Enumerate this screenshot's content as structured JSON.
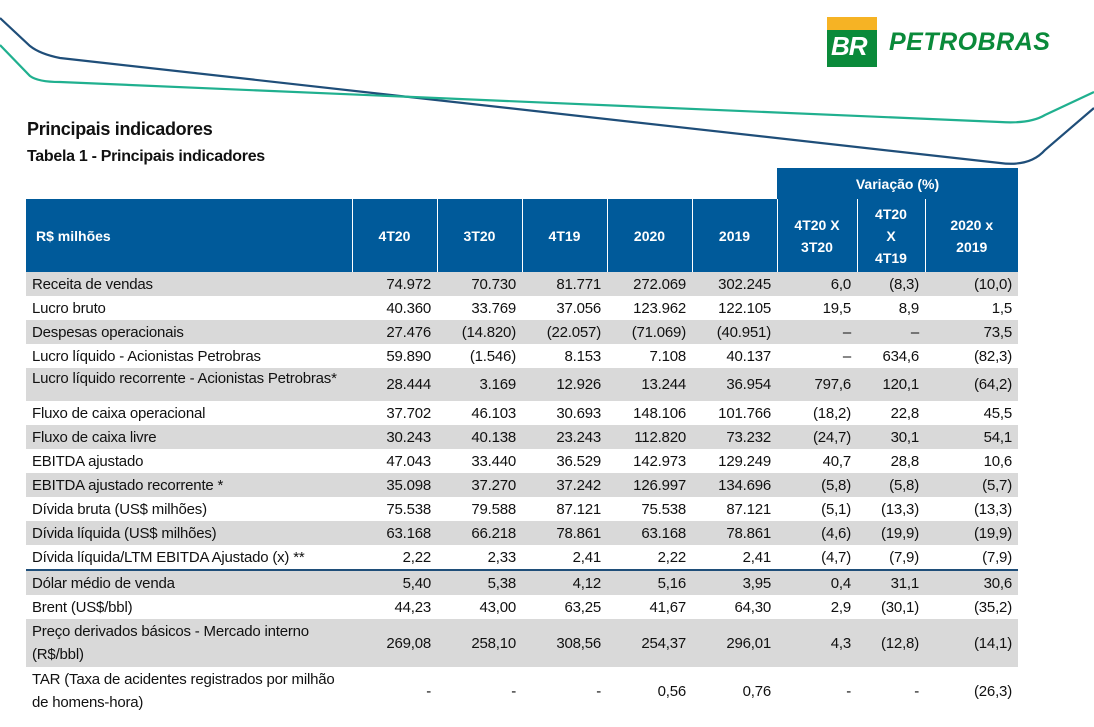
{
  "logo": {
    "mark": "BR",
    "name": "PETROBRAS"
  },
  "section_title": "Principais indicadores",
  "table_title": "Tabela 1 - Principais indicadores",
  "variation_header": "Variação (%)",
  "columns": [
    "R$ milhões",
    "4T20",
    "3T20",
    "4T19",
    "2020",
    "2019",
    "4T20 X 3T20",
    "4T20 X 4T19",
    "2020 x 2019"
  ],
  "rows": [
    {
      "label": "Receita de vendas",
      "values": [
        "74.972",
        "70.730",
        "81.771",
        "272.069",
        "302.245",
        "6,0",
        "(8,3)",
        "(10,0)"
      ]
    },
    {
      "label": "Lucro bruto",
      "values": [
        "40.360",
        "33.769",
        "37.056",
        "123.962",
        "122.105",
        "19,5",
        "8,9",
        "1,5"
      ]
    },
    {
      "label": "Despesas operacionais",
      "values": [
        "27.476",
        "(14.820)",
        "(22.057)",
        "(71.069)",
        "(40.951)",
        "–",
        "–",
        "73,5"
      ]
    },
    {
      "label": "Lucro líquido - Acionistas Petrobras",
      "values": [
        "59.890",
        "(1.546)",
        "8.153",
        "7.108",
        "40.137",
        "–",
        "634,6",
        "(82,3)"
      ]
    },
    {
      "label": "Lucro líquido recorrente - Acionistas Petrobras*",
      "values": [
        "28.444",
        "3.169",
        "12.926",
        "13.244",
        "36.954",
        "797,6",
        "120,1",
        "(64,2)"
      ]
    },
    {
      "label": "Fluxo de caixa operacional",
      "values": [
        "37.702",
        "46.103",
        "30.693",
        "148.106",
        "101.766",
        "(18,2)",
        "22,8",
        "45,5"
      ]
    },
    {
      "label": "Fluxo de caixa livre",
      "values": [
        "30.243",
        "40.138",
        "23.243",
        "112.820",
        "73.232",
        "(24,7)",
        "30,1",
        "54,1"
      ]
    },
    {
      "label": "EBITDA ajustado",
      "values": [
        "47.043",
        "33.440",
        "36.529",
        "142.973",
        "129.249",
        "40,7",
        "28,8",
        "10,6"
      ]
    },
    {
      "label": "EBITDA ajustado recorrente *",
      "values": [
        "35.098",
        "37.270",
        "37.242",
        "126.997",
        "134.696",
        "(5,8)",
        "(5,8)",
        "(5,7)"
      ]
    },
    {
      "label": "Dívida bruta (US$ milhões)",
      "values": [
        "75.538",
        "79.588",
        "87.121",
        "75.538",
        "87.121",
        "(5,1)",
        "(13,3)",
        "(13,3)"
      ]
    },
    {
      "label": "Dívida líquida (US$ milhões)",
      "values": [
        "63.168",
        "66.218",
        "78.861",
        "63.168",
        "78.861",
        "(4,6)",
        "(19,9)",
        "(19,9)"
      ]
    },
    {
      "label": "Dívida líquida/LTM EBITDA Ajustado (x) **",
      "values": [
        "2,22",
        "2,33",
        "2,41",
        "2,22",
        "2,41",
        "(4,7)",
        "(7,9)",
        "(7,9)"
      ]
    },
    {
      "label": "Dólar médio de venda",
      "values": [
        "5,40",
        "5,38",
        "4,12",
        "5,16",
        "3,95",
        "0,4",
        "31,1",
        "30,6"
      ]
    },
    {
      "label": "Brent (US$/bbl)",
      "values": [
        "44,23",
        "43,00",
        "63,25",
        "41,67",
        "64,30",
        "2,9",
        "(30,1)",
        "(35,2)"
      ]
    },
    {
      "label": "Preço derivados básicos - Mercado interno (R$/bbl)",
      "values": [
        "269,08",
        "258,10",
        "308,56",
        "254,37",
        "296,01",
        "4,3",
        "(12,8)",
        "(14,1)"
      ]
    },
    {
      "label": "TAR (Taxa de acidentes registrados por milhão de homens-hora)",
      "values": [
        "-",
        "-",
        "-",
        "0,56",
        "0,76",
        "-",
        "-",
        "(26,3)"
      ]
    }
  ],
  "colors": {
    "header_blue": "#005a9a",
    "row_gray": "#d9d9d9",
    "logo_green": "#0a8a3a",
    "logo_yellow": "#f6b324"
  }
}
